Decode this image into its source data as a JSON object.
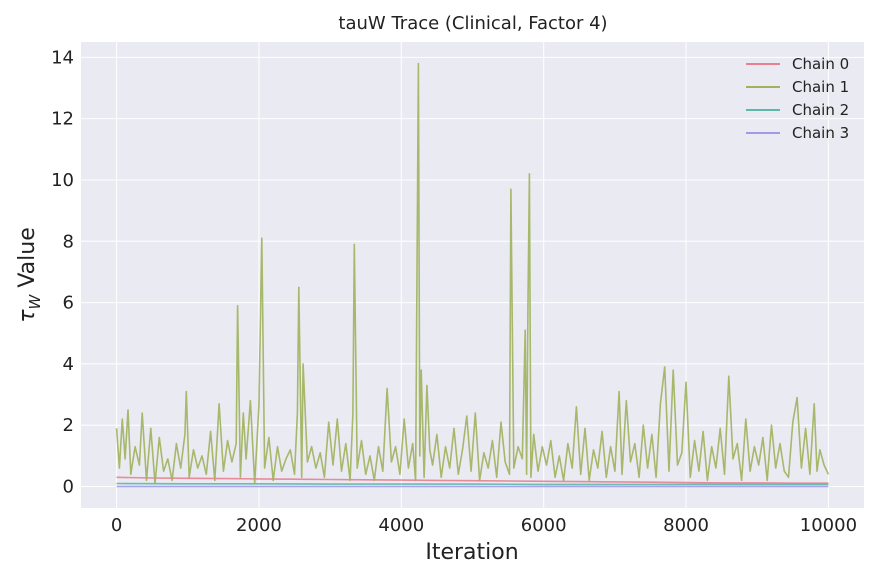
{
  "chart_data": {
    "type": "line",
    "title": "tauW Trace (Clinical, Factor 4)",
    "xlabel": "Iteration",
    "ylabel_symbol": "τ",
    "ylabel_subscript": "W",
    "ylabel_text": " Value",
    "xlim": [
      -500,
      10500
    ],
    "ylim": [
      -0.7,
      14.5
    ],
    "xticks": [
      0,
      2000,
      4000,
      6000,
      8000,
      10000
    ],
    "yticks": [
      0,
      2,
      4,
      6,
      8,
      10,
      12,
      14
    ],
    "grid": true,
    "legend_position": "top-right",
    "background": "#eaeaf2",
    "series": [
      {
        "name": "Chain 0",
        "color": "#e8808f",
        "x": [
          0,
          500,
          1000,
          1500,
          2000,
          2500,
          3000,
          3500,
          4000,
          4500,
          5000,
          5500,
          6000,
          6500,
          7000,
          7500,
          8000,
          8500,
          9000,
          9500,
          10000
        ],
        "y": [
          0.3,
          0.28,
          0.27,
          0.26,
          0.25,
          0.24,
          0.23,
          0.22,
          0.21,
          0.2,
          0.19,
          0.18,
          0.17,
          0.16,
          0.15,
          0.14,
          0.13,
          0.12,
          0.12,
          0.11,
          0.11
        ]
      },
      {
        "name": "Chain 1",
        "color": "#9fb35c",
        "x": [
          0,
          40,
          80,
          120,
          160,
          200,
          260,
          320,
          360,
          420,
          480,
          540,
          600,
          660,
          720,
          780,
          840,
          900,
          960,
          980,
          1020,
          1080,
          1140,
          1200,
          1260,
          1320,
          1380,
          1440,
          1500,
          1560,
          1620,
          1680,
          1700,
          1740,
          1780,
          1820,
          1880,
          1940,
          2000,
          2040,
          2080,
          2140,
          2200,
          2260,
          2320,
          2380,
          2440,
          2500,
          2540,
          2560,
          2600,
          2620,
          2680,
          2740,
          2800,
          2860,
          2920,
          2980,
          3040,
          3100,
          3160,
          3220,
          3280,
          3320,
          3340,
          3380,
          3440,
          3500,
          3560,
          3620,
          3680,
          3740,
          3800,
          3860,
          3920,
          3980,
          4040,
          4100,
          4160,
          4200,
          4240,
          4260,
          4280,
          4320,
          4360,
          4400,
          4440,
          4500,
          4560,
          4620,
          4680,
          4740,
          4800,
          4860,
          4920,
          4980,
          5040,
          5100,
          5160,
          5220,
          5280,
          5340,
          5400,
          5460,
          5520,
          5540,
          5580,
          5640,
          5700,
          5740,
          5760,
          5780,
          5800,
          5820,
          5860,
          5920,
          5980,
          6040,
          6100,
          6160,
          6220,
          6280,
          6340,
          6400,
          6460,
          6520,
          6580,
          6640,
          6700,
          6760,
          6820,
          6880,
          6940,
          7000,
          7060,
          7100,
          7160,
          7220,
          7280,
          7340,
          7400,
          7460,
          7520,
          7580,
          7640,
          7700,
          7760,
          7820,
          7880,
          7940,
          8000,
          8060,
          8120,
          8180,
          8240,
          8300,
          8360,
          8420,
          8480,
          8540,
          8600,
          8660,
          8720,
          8780,
          8840,
          8900,
          8960,
          9020,
          9080,
          9140,
          9200,
          9260,
          9320,
          9380,
          9440,
          9500,
          9560,
          9620,
          9680,
          9740,
          9800,
          9840,
          9880,
          9940,
          10000
        ],
        "y": [
          1.9,
          0.6,
          2.2,
          0.9,
          2.5,
          0.4,
          1.3,
          0.7,
          2.4,
          0.2,
          1.9,
          0.1,
          1.6,
          0.5,
          0.9,
          0.2,
          1.4,
          0.6,
          1.7,
          3.1,
          0.3,
          1.2,
          0.6,
          1.0,
          0.4,
          1.8,
          0.2,
          2.7,
          0.5,
          1.5,
          0.8,
          1.4,
          5.9,
          0.3,
          2.4,
          0.9,
          2.8,
          0.1,
          2.7,
          8.1,
          0.6,
          1.6,
          0.2,
          1.3,
          0.5,
          0.9,
          1.2,
          0.4,
          2.4,
          6.5,
          0.3,
          4.0,
          0.8,
          1.3,
          0.6,
          1.1,
          0.3,
          2.1,
          0.7,
          2.2,
          0.5,
          1.4,
          0.2,
          2.4,
          7.9,
          0.6,
          1.5,
          0.4,
          1.0,
          0.2,
          1.3,
          0.5,
          3.2,
          0.8,
          1.3,
          0.4,
          2.2,
          0.6,
          1.4,
          0.2,
          13.8,
          1.0,
          3.8,
          0.3,
          3.3,
          1.2,
          0.7,
          1.7,
          0.3,
          1.3,
          0.6,
          1.9,
          0.4,
          1.2,
          2.3,
          0.5,
          2.4,
          0.2,
          1.1,
          0.6,
          1.5,
          0.3,
          2.1,
          0.8,
          0.4,
          9.7,
          0.6,
          1.3,
          0.9,
          5.1,
          0.4,
          6.0,
          10.2,
          0.3,
          1.7,
          0.5,
          1.3,
          0.7,
          1.5,
          0.3,
          1.0,
          0.2,
          1.4,
          0.6,
          2.6,
          0.4,
          1.9,
          0.2,
          1.2,
          0.6,
          1.8,
          0.3,
          1.3,
          0.5,
          3.1,
          0.4,
          2.8,
          0.8,
          1.4,
          0.3,
          2.0,
          0.6,
          1.7,
          0.3,
          2.7,
          3.9,
          0.5,
          3.8,
          0.7,
          1.1,
          3.4,
          0.3,
          1.5,
          0.5,
          1.8,
          0.2,
          1.3,
          0.6,
          1.9,
          0.4,
          3.6,
          0.9,
          1.4,
          0.2,
          2.2,
          0.5,
          1.3,
          0.7,
          1.6,
          0.2,
          2.0,
          0.6,
          1.4,
          0.5,
          0.3,
          2.1,
          2.9,
          0.6,
          1.9,
          0.4,
          2.7,
          0.5,
          1.2,
          0.7,
          0.4
        ]
      },
      {
        "name": "Chain 2",
        "color": "#5cb8a8",
        "x": [
          0,
          1000,
          2000,
          3000,
          4000,
          5000,
          6000,
          7000,
          8000,
          9000,
          10000
        ],
        "y": [
          0.1,
          0.09,
          0.09,
          0.08,
          0.08,
          0.08,
          0.07,
          0.07,
          0.07,
          0.07,
          0.07
        ]
      },
      {
        "name": "Chain 3",
        "color": "#a09ae8",
        "x": [
          0,
          1000,
          2000,
          3000,
          4000,
          5000,
          6000,
          7000,
          8000,
          9000,
          10000
        ],
        "y": [
          0.0,
          0.0,
          0.0,
          0.0,
          0.0,
          0.0,
          0.0,
          0.0,
          0.0,
          0.0,
          0.0
        ]
      }
    ]
  }
}
